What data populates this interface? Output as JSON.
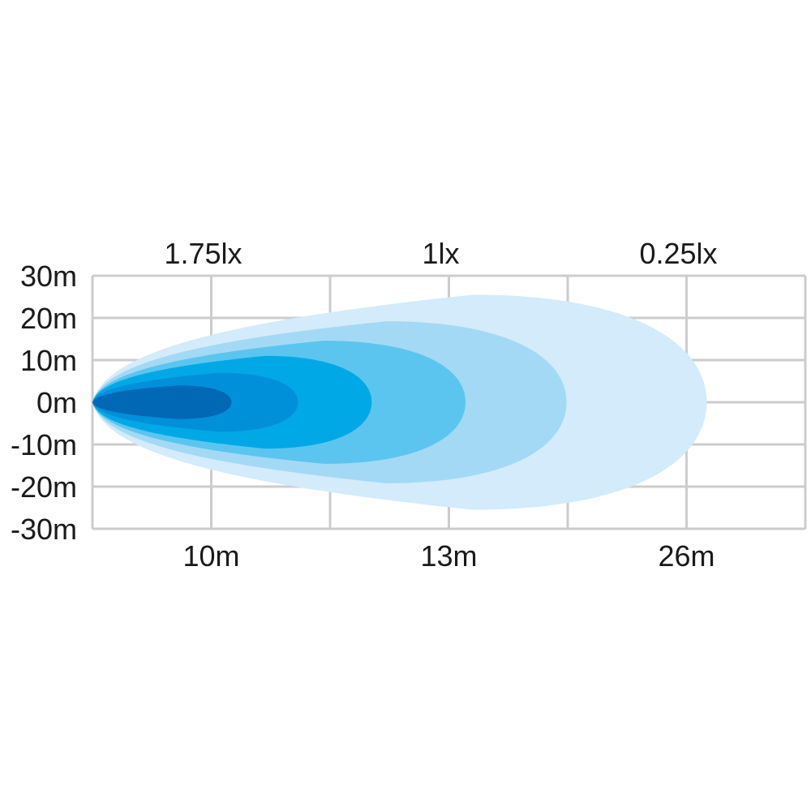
{
  "chart_data": {
    "type": "area",
    "title": "",
    "y_ticks": [
      "30m",
      "20m",
      "10m",
      "0m",
      "-10m",
      "-20m",
      "-30m"
    ],
    "y_values": [
      30,
      20,
      10,
      0,
      -10,
      -20,
      -30
    ],
    "ylim": [
      -30,
      30
    ],
    "x_grid_columns": 6,
    "x_ticks": [
      {
        "col": 1,
        "label": "10m"
      },
      {
        "col": 3,
        "label": "13m"
      },
      {
        "col": 5,
        "label": "26m"
      }
    ],
    "top_labels": [
      {
        "col": 1,
        "label": "1.75lx"
      },
      {
        "col": 3,
        "label": "1lx"
      },
      {
        "col": 5,
        "label": "0.25lx"
      }
    ],
    "grid": true,
    "contours": [
      {
        "reach_col": 5.17,
        "half_width_m": 25.5,
        "color": "#d3ebfa"
      },
      {
        "reach_col": 3.99,
        "half_width_m": 19.2,
        "color": "#a3d9f5"
      },
      {
        "reach_col": 3.14,
        "half_width_m": 14.6,
        "color": "#5bc5f0"
      },
      {
        "reach_col": 2.35,
        "half_width_m": 11.0,
        "color": "#00a9e6"
      },
      {
        "reach_col": 1.73,
        "half_width_m": 7.0,
        "color": "#0090da"
      },
      {
        "reach_col": 1.17,
        "half_width_m": 4.0,
        "color": "#0068b5"
      }
    ],
    "grid_color": "#cccccc"
  }
}
